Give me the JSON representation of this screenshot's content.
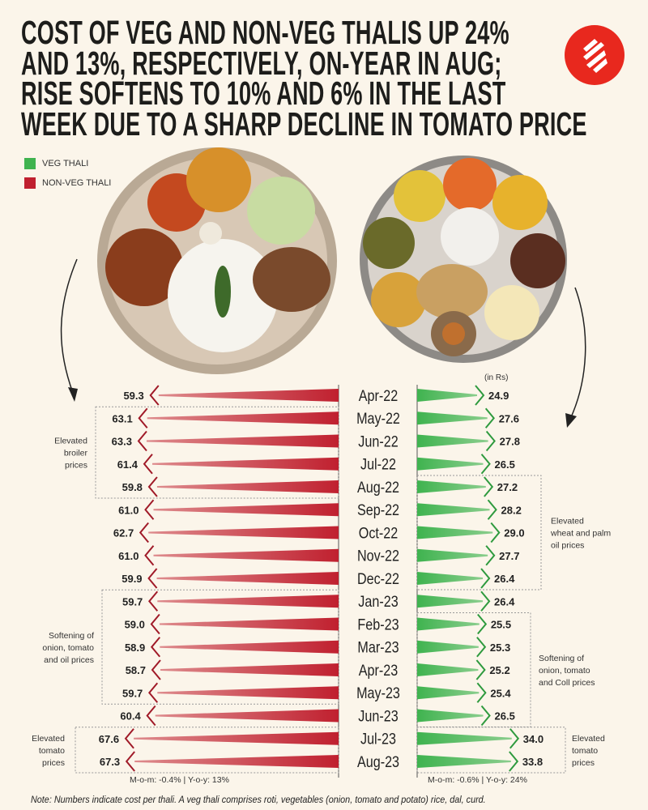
{
  "title_lines": [
    "COST OF VEG AND NON-VEG THALIS UP 24%",
    "AND 13%, RESPECTIVELY, ON-YEAR IN AUG;",
    "RISE SOFTENS TO 10% AND 6% IN THE LAST",
    "WEEK DUE TO A SHARP DECLINE IN TOMATO PRICE"
  ],
  "logo": {
    "name": "indian-express-logo",
    "color": "#e8281e"
  },
  "legend": [
    {
      "label": "VEG THALI",
      "color": "#3fb34f"
    },
    {
      "label": "NON-VEG THALI",
      "color": "#c0202f"
    }
  ],
  "unit": "(in Rs)",
  "chart_data": {
    "type": "bar",
    "orientation": "diverging-horizontal-arrows",
    "categories": [
      "Apr-22",
      "May-22",
      "Jun-22",
      "Jul-22",
      "Aug-22",
      "Sep-22",
      "Oct-22",
      "Nov-22",
      "Dec-22",
      "Jan-23",
      "Feb-23",
      "Mar-23",
      "Apr-23",
      "May-23",
      "Jun-23",
      "Jul-23",
      "Aug-23"
    ],
    "series": [
      {
        "name": "NON-VEG THALI",
        "color": "#c0202f",
        "side": "left",
        "values": [
          "59.3",
          "63.1",
          "63.3",
          "61.4",
          "59.8",
          "61.0",
          "62.7",
          "61.0",
          "59.9",
          "59.7",
          "59.0",
          "58.9",
          "58.7",
          "59.7",
          "60.4",
          "67.6",
          "67.3"
        ]
      },
      {
        "name": "VEG THALI",
        "color": "#3fb34f",
        "side": "right",
        "values": [
          "24.9",
          "27.6",
          "27.8",
          "26.5",
          "27.2",
          "28.2",
          "29.0",
          "27.7",
          "26.4",
          "26.4",
          "25.5",
          "25.3",
          "25.2",
          "25.4",
          "26.5",
          "34.0",
          "33.8"
        ]
      }
    ],
    "annotations_left": [
      {
        "lines": [
          "Elevated",
          "broiler",
          "prices"
        ],
        "from": "May-22",
        "to": "Aug-22"
      },
      {
        "lines": [
          "Softening of",
          "onion, tomato",
          "and oil prices"
        ],
        "from": "Jan-23",
        "to": "May-23"
      },
      {
        "lines": [
          "Elevated",
          "tomato",
          "prices"
        ],
        "from": "Jul-23",
        "to": "Aug-23"
      }
    ],
    "annotations_right": [
      {
        "lines": [
          "Elevated",
          "wheat and palm",
          "oil prices"
        ],
        "from": "Aug-22",
        "to": "Dec-22"
      },
      {
        "lines": [
          "Softening of",
          "onion, tomato",
          "and Coll prices"
        ],
        "from": "Feb-23",
        "to": "Jun-23"
      },
      {
        "lines": [
          "Elevated",
          "tomato",
          "prices"
        ],
        "from": "Jul-23",
        "to": "Aug-23"
      }
    ],
    "summary_left": "M-o-m: -0.4% | Y-o-y: 13%",
    "summary_right": "M-o-m: -0.6% | Y-o-y: 24%"
  },
  "note": "Note: Numbers indicate cost per thali. A veg thali comprises roti, vegetables (onion, tomato and potato) rice, dal, curd."
}
